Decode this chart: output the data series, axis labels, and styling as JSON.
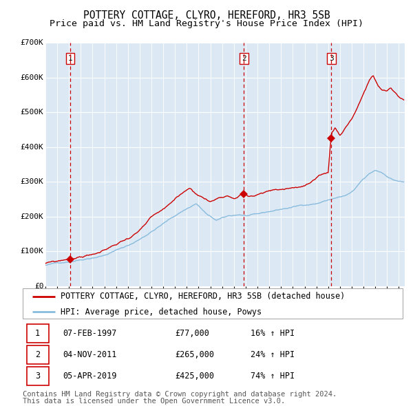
{
  "title": "POTTERY COTTAGE, CLYRO, HEREFORD, HR3 5SB",
  "subtitle": "Price paid vs. HM Land Registry's House Price Index (HPI)",
  "background_color": "#dce9f5",
  "grid_color": "#ffffff",
  "hpi_line_color": "#88bbdd",
  "price_line_color": "#cc0000",
  "sale_marker_color": "#cc0000",
  "dashed_line_color": "#cc0000",
  "ylim": [
    0,
    700000
  ],
  "ytick_vals": [
    0,
    100000,
    200000,
    300000,
    400000,
    500000,
    600000,
    700000
  ],
  "ytick_labels": [
    "£0",
    "£100K",
    "£200K",
    "£300K",
    "£400K",
    "£500K",
    "£600K",
    "£700K"
  ],
  "xlim_start": 1995.0,
  "xlim_end": 2025.5,
  "sale_dates": [
    1997.1,
    2011.85,
    2019.27
  ],
  "sale_prices": [
    77000,
    265000,
    425000
  ],
  "sale_labels": [
    "1",
    "2",
    "3"
  ],
  "legend_line1": "POTTERY COTTAGE, CLYRO, HEREFORD, HR3 5SB (detached house)",
  "legend_line2": "HPI: Average price, detached house, Powys",
  "table_rows": [
    {
      "num": "1",
      "date": "07-FEB-1997",
      "price": "£77,000",
      "hpi": "16% ↑ HPI"
    },
    {
      "num": "2",
      "date": "04-NOV-2011",
      "price": "£265,000",
      "hpi": "24% ↑ HPI"
    },
    {
      "num": "3",
      "date": "05-APR-2019",
      "price": "£425,000",
      "hpi": "74% ↑ HPI"
    }
  ],
  "footnote1": "Contains HM Land Registry data © Crown copyright and database right 2024.",
  "footnote2": "This data is licensed under the Open Government Licence v3.0.",
  "title_fontsize": 10.5,
  "subtitle_fontsize": 9.5,
  "tick_fontsize": 8,
  "legend_fontsize": 8.5,
  "table_fontsize": 8.5,
  "footnote_fontsize": 7.5
}
